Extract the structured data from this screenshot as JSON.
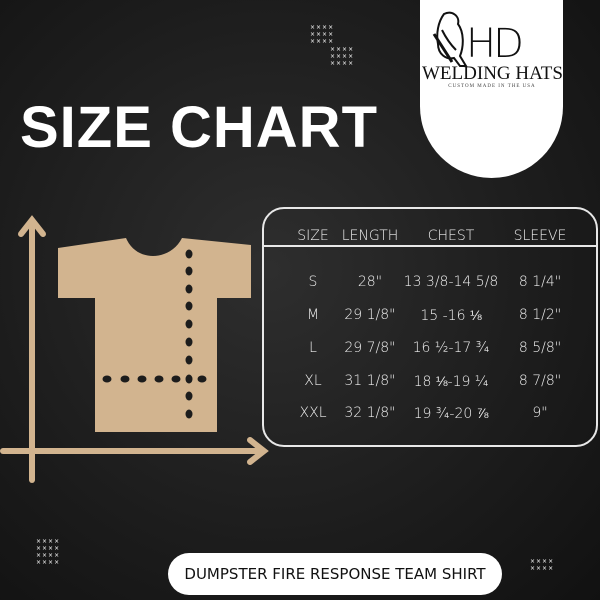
{
  "logo": {
    "mark": "HD",
    "name": "WELDING HATS",
    "tagline": "CUSTOM MADE IN THE USA"
  },
  "title": "SIZE CHART",
  "table": {
    "headers": [
      "SIZE",
      "LENGTH",
      "CHEST",
      "SLEEVE"
    ],
    "rows": [
      [
        "S",
        "28\"",
        "13 3/8-14 5/8",
        "8 1/4\""
      ],
      [
        "M",
        "29 1/8\"",
        "15 -16 ⅛",
        "8 1/2\""
      ],
      [
        "L",
        "29 7/8\"",
        "16 ½-17 ¾",
        "8 5/8\""
      ],
      [
        "XL",
        "31 1/8\"",
        "18 ⅛-19 ¼",
        "8 7/8\""
      ],
      [
        "XXL",
        "32 1/8\"",
        "19 ¾-20 ⅞",
        "9\""
      ]
    ]
  },
  "product_label": "DUMPSTER FIRE RESPONSE TEAM SHIRT",
  "colors": {
    "shirt": "#d2b48f",
    "background": "#1c1c1c",
    "text": "#ffffff"
  }
}
